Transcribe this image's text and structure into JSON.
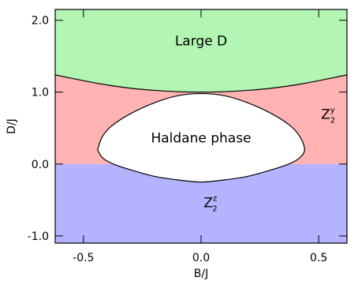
{
  "chart_data": {
    "type": "area",
    "title": "",
    "xlabel": "B/J",
    "ylabel": "D/J",
    "xlim": [
      -0.62,
      0.62
    ],
    "ylim": [
      -1.1,
      2.15
    ],
    "x_ticks": [
      -0.5,
      0.0,
      0.5
    ],
    "x_tick_labels": [
      "-0.5",
      "0.0",
      "0.5"
    ],
    "y_ticks": [
      -1.0,
      0.0,
      1.0,
      2.0
    ],
    "y_tick_labels": [
      "-1.0",
      "0.0",
      "1.0",
      "2.0"
    ],
    "grid": false,
    "regions": [
      {
        "id": "large-d",
        "label": "Large D",
        "color": "#b3f5b3"
      },
      {
        "id": "z2y",
        "label": "Z",
        "sup": "y",
        "sub": "2",
        "color": "#ffb3b3"
      },
      {
        "id": "z2z",
        "label": "Z",
        "sup": "z",
        "sub": "2",
        "color": "#b3b3ff"
      },
      {
        "id": "haldane",
        "label": "Haldane phase",
        "color": "#ffffff"
      }
    ],
    "boundaries": {
      "large_d_upper": {
        "x": [
          -0.62,
          -0.5,
          -0.4,
          -0.3,
          -0.2,
          -0.1,
          0.0,
          0.1,
          0.2,
          0.3,
          0.4,
          0.5,
          0.62
        ],
        "y": [
          1.24,
          1.16,
          1.1,
          1.055,
          1.025,
          1.006,
          1.0,
          1.006,
          1.025,
          1.055,
          1.1,
          1.16,
          1.24
        ]
      },
      "z2_divider": {
        "y": 0.0
      },
      "haldane_upper": {
        "x": [
          -0.44,
          -0.42,
          -0.38,
          -0.3,
          -0.2,
          -0.1,
          0.0,
          0.1,
          0.2,
          0.3,
          0.38,
          0.42,
          0.44
        ],
        "y": [
          0.2,
          0.38,
          0.53,
          0.7,
          0.85,
          0.95,
          0.98,
          0.95,
          0.85,
          0.7,
          0.53,
          0.38,
          0.2
        ]
      },
      "haldane_lower": {
        "x": [
          0.44,
          0.42,
          0.38,
          0.3,
          0.2,
          0.1,
          0.0,
          -0.1,
          -0.2,
          -0.3,
          -0.38,
          -0.42,
          -0.44
        ],
        "y": [
          0.2,
          0.09,
          0.01,
          -0.08,
          -0.17,
          -0.22,
          -0.25,
          -0.22,
          -0.17,
          -0.08,
          0.01,
          0.09,
          0.2
        ]
      }
    },
    "label_positions": {
      "large-d": [
        0.0,
        1.65
      ],
      "z2y": [
        0.54,
        0.63
      ],
      "z2z": [
        0.04,
        -0.6
      ],
      "haldane": [
        0.0,
        0.3
      ]
    }
  }
}
